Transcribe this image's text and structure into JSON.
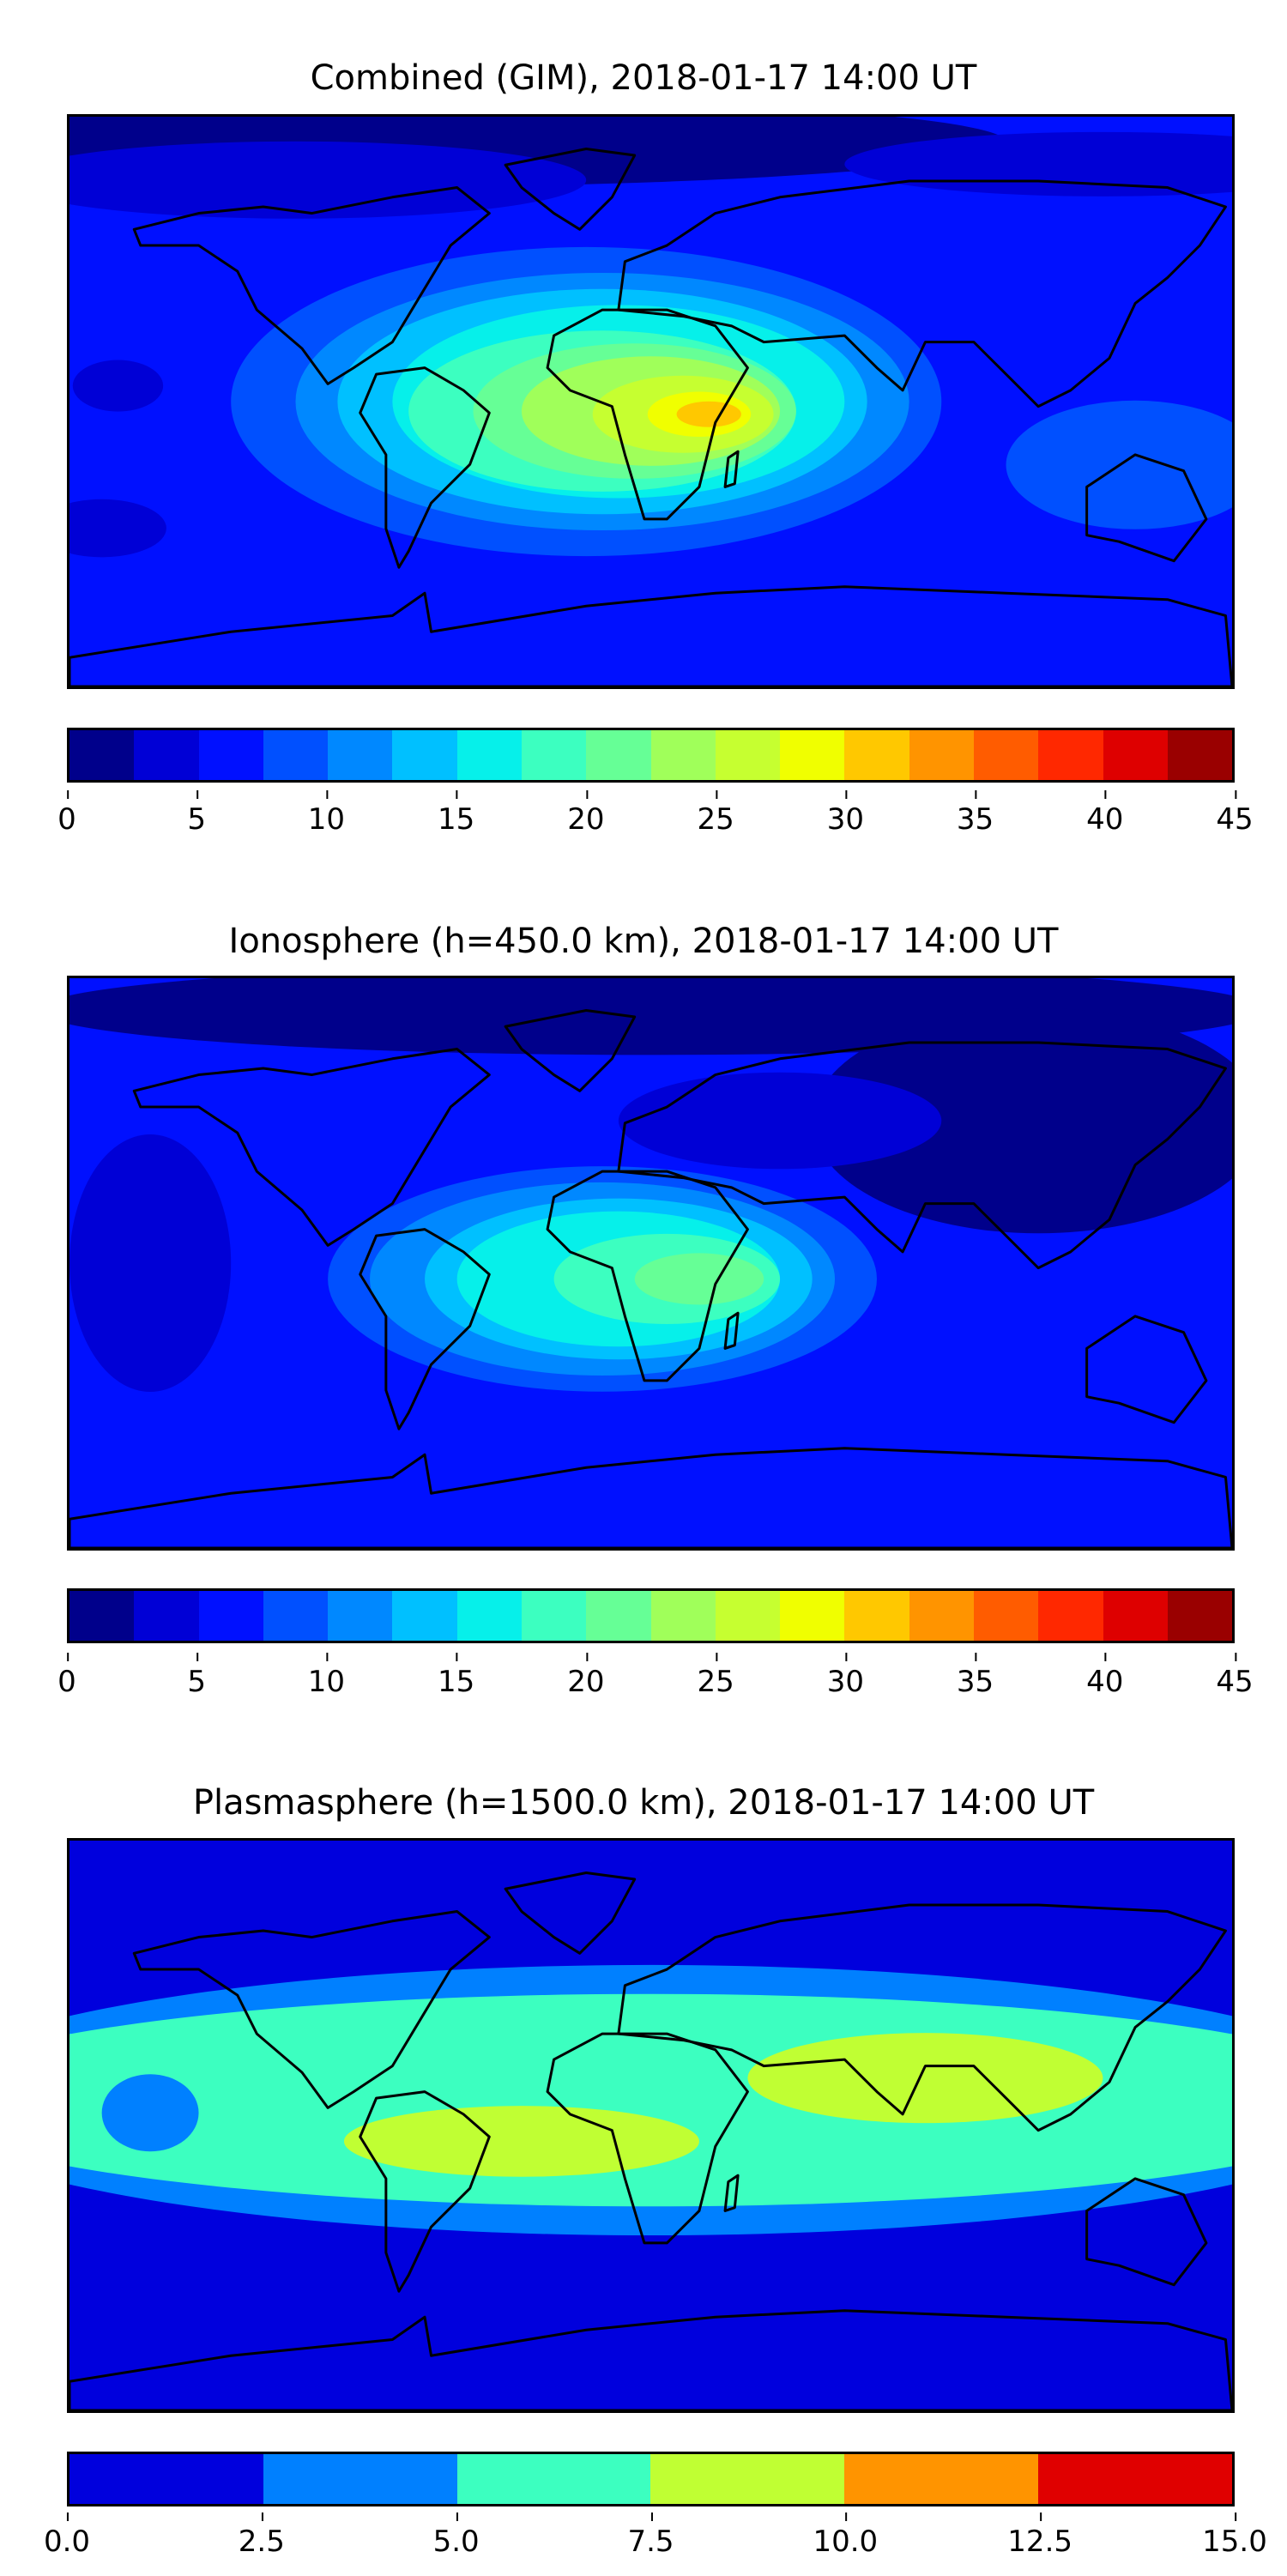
{
  "chart_data": [
    {
      "type": "heatmap",
      "title": "Combined (GIM), 2018-01-17 14:00 UT",
      "colorbar": {
        "ticks": [
          "0",
          "5",
          "10",
          "15",
          "20",
          "25",
          "30",
          "35",
          "40",
          "45"
        ],
        "range": [
          0,
          45
        ],
        "step": 2.5,
        "colors": [
          "#00008b",
          "#0000d6",
          "#0010ff",
          "#0050ff",
          "#0088ff",
          "#00c0ff",
          "#06f0ea",
          "#3cffc0",
          "#66ff96",
          "#a0ff5a",
          "#c6ff30",
          "#f0ff00",
          "#ffc800",
          "#ff9400",
          "#ff5c00",
          "#ff2800",
          "#de0000",
          "#9a0000"
        ]
      },
      "background_level": 2,
      "regions": [
        {
          "level": 0,
          "lon": -90,
          "lat": 82,
          "rx": 200,
          "ry": 14
        },
        {
          "level": 1,
          "lon": -110,
          "lat": 70,
          "rx": 90,
          "ry": 12
        },
        {
          "level": 1,
          "lon": 140,
          "lat": 75,
          "rx": 80,
          "ry": 10
        },
        {
          "level": 1,
          "lon": -165,
          "lat": 5,
          "rx": 14,
          "ry": 8
        },
        {
          "level": 1,
          "lon": -170,
          "lat": -40,
          "rx": 20,
          "ry": 9
        },
        {
          "level": 3,
          "lon": -20,
          "lat": 0,
          "rx": 110,
          "ry": 48
        },
        {
          "level": 3,
          "lon": 150,
          "lat": -20,
          "rx": 40,
          "ry": 20
        },
        {
          "level": 4,
          "lon": -15,
          "lat": 0,
          "rx": 95,
          "ry": 40
        },
        {
          "level": 5,
          "lon": -15,
          "lat": 0,
          "rx": 82,
          "ry": 35
        },
        {
          "level": 6,
          "lon": -10,
          "lat": 0,
          "rx": 70,
          "ry": 30
        },
        {
          "level": 7,
          "lon": -15,
          "lat": -3,
          "rx": 60,
          "ry": 25
        },
        {
          "level": 8,
          "lon": -5,
          "lat": -3,
          "rx": 50,
          "ry": 21
        },
        {
          "level": 9,
          "lon": 0,
          "lat": -3,
          "rx": 40,
          "ry": 17
        },
        {
          "level": 10,
          "lon": 10,
          "lat": -4,
          "rx": 28,
          "ry": 12
        },
        {
          "level": 11,
          "lon": 15,
          "lat": -4,
          "rx": 16,
          "ry": 7
        },
        {
          "level": 12,
          "lon": 18,
          "lat": -4,
          "rx": 10,
          "ry": 4
        }
      ]
    },
    {
      "type": "heatmap",
      "title": "Ionosphere  (h=450.0 km), 2018-01-17 14:00 UT",
      "colorbar": {
        "ticks": [
          "0",
          "5",
          "10",
          "15",
          "20",
          "25",
          "30",
          "35",
          "40",
          "45"
        ],
        "range": [
          0,
          45
        ],
        "step": 2.5,
        "colors": [
          "#00008b",
          "#0000d6",
          "#0010ff",
          "#0050ff",
          "#0088ff",
          "#00c0ff",
          "#06f0ea",
          "#3cffc0",
          "#66ff96",
          "#a0ff5a",
          "#c6ff30",
          "#f0ff00",
          "#ffc800",
          "#ff9400",
          "#ff5c00",
          "#ff2800",
          "#de0000",
          "#9a0000"
        ]
      },
      "background_level": 2,
      "regions": [
        {
          "level": 0,
          "lon": 0,
          "lat": 80,
          "rx": 190,
          "ry": 14
        },
        {
          "level": 0,
          "lon": 120,
          "lat": 45,
          "rx": 70,
          "ry": 35
        },
        {
          "level": 1,
          "lon": -155,
          "lat": 0,
          "rx": 25,
          "ry": 40
        },
        {
          "level": 1,
          "lon": 40,
          "lat": 45,
          "rx": 50,
          "ry": 15
        },
        {
          "level": 3,
          "lon": -15,
          "lat": -5,
          "rx": 85,
          "ry": 35
        },
        {
          "level": 4,
          "lon": -15,
          "lat": -5,
          "rx": 72,
          "ry": 30
        },
        {
          "level": 5,
          "lon": -10,
          "lat": -5,
          "rx": 60,
          "ry": 25
        },
        {
          "level": 6,
          "lon": -10,
          "lat": -5,
          "rx": 50,
          "ry": 21
        },
        {
          "level": 7,
          "lon": 5,
          "lat": -5,
          "rx": 35,
          "ry": 14
        },
        {
          "level": 8,
          "lon": 15,
          "lat": -5,
          "rx": 20,
          "ry": 8
        }
      ]
    },
    {
      "type": "heatmap",
      "title": "Plasmasphere (h=1500.0 km), 2018-01-17 14:00 UT",
      "colorbar": {
        "ticks": [
          "0.0",
          "2.5",
          "5.0",
          "7.5",
          "10.0",
          "12.5",
          "15.0"
        ],
        "range": [
          0,
          15
        ],
        "step": 2.5,
        "colors": [
          "#0000dd",
          "#0080ff",
          "#3cffc0",
          "#c0ff33",
          "#ff9400",
          "#e00000"
        ]
      },
      "background_level": 0,
      "regions": [
        {
          "level": 1,
          "lon": 0,
          "lat": 8,
          "rx": 230,
          "ry": 42
        },
        {
          "level": 2,
          "lon": 0,
          "lat": 8,
          "rx": 230,
          "ry": 33
        },
        {
          "level": 1,
          "lon": -155,
          "lat": 4,
          "rx": 15,
          "ry": 12
        },
        {
          "level": 3,
          "lon": -40,
          "lat": -5,
          "rx": 55,
          "ry": 11
        },
        {
          "level": 3,
          "lon": 85,
          "lat": 15,
          "rx": 55,
          "ry": 14
        }
      ]
    }
  ]
}
